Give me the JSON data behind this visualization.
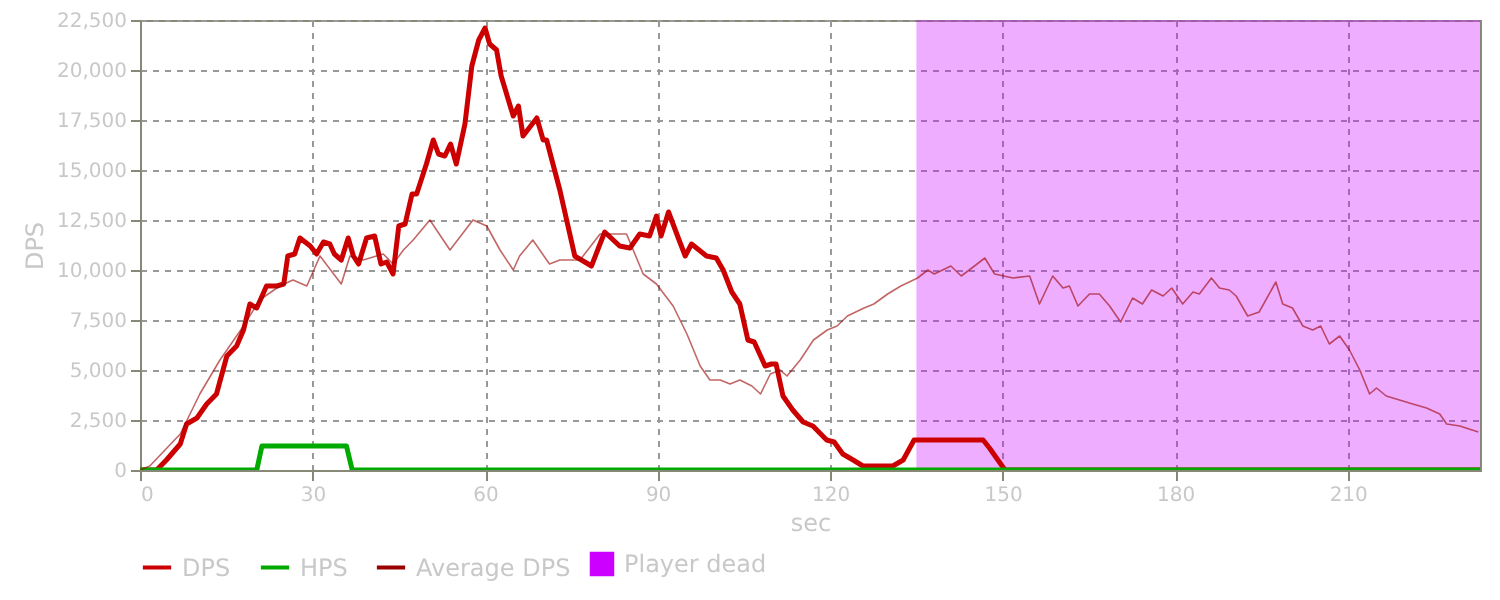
{
  "chart_data": {
    "type": "line",
    "xlabel": "sec",
    "ylabel": "DPS",
    "xlim": [
      0,
      233
    ],
    "ylim": [
      0,
      22500
    ],
    "xticks": [
      0,
      30,
      60,
      90,
      120,
      150,
      180,
      210
    ],
    "yticks": [
      0,
      {
        "value": 2500,
        "label": "2,500"
      },
      {
        "value": 5000,
        "label": "5,000"
      },
      {
        "value": 7500,
        "label": "7,500"
      },
      {
        "value": 10000,
        "label": "10,000"
      },
      {
        "value": 12500,
        "label": "12,500"
      },
      {
        "value": 15000,
        "label": "15,000"
      },
      {
        "value": 17500,
        "label": "17,500"
      },
      {
        "value": 20000,
        "label": "20,000"
      },
      {
        "value": 22500,
        "label": "22,500"
      }
    ],
    "grid": true,
    "legend": "bottom",
    "line_style": "solid",
    "marker": "none",
    "series": [
      {
        "name": "DPS",
        "color": "#cc0000",
        "x": [
          0,
          2.9,
          4.6,
          7.0,
          8.1,
          9.9,
          11.6,
          13.3,
          15.1,
          16.8,
          18,
          19.1,
          20.3,
          22,
          23.8,
          25,
          25.7,
          26.9,
          27.8,
          29.6,
          30.7,
          31.9,
          33,
          33.8,
          35,
          36.2,
          37.1,
          38,
          39.4,
          40.8,
          41.9,
          42.9,
          44,
          45,
          46.1,
          47.3,
          48.1,
          49.8,
          51,
          51.9,
          53,
          54,
          55,
          56.5,
          57.7,
          58.9,
          60,
          60.8,
          62,
          62.8,
          64.9,
          65.8,
          66.6,
          69,
          70.1,
          70.7,
          73,
          75.6,
          78.5,
          80.8,
          83.4,
          85.2,
          86.9,
          88.6,
          89.8,
          90.6,
          91.9,
          93.6,
          94.8,
          95.9,
          98.5,
          100.2,
          101.4,
          102.9,
          104.3,
          105.7,
          106.8,
          108.7,
          109.8,
          110.6,
          111.8,
          113.5,
          115.3,
          117,
          119.4,
          120.7,
          122.2,
          124,
          125.7,
          130.9,
          132.7,
          134.6,
          146.6,
          147.7,
          150.4,
          233
        ],
        "values": [
          0,
          0,
          500,
          1300,
          2300,
          2600,
          3300,
          3800,
          5700,
          6200,
          7000,
          8300,
          8100,
          9200,
          9200,
          9300,
          10700,
          10800,
          11600,
          11200,
          10800,
          11400,
          11300,
          10800,
          10500,
          11600,
          10700,
          10300,
          11600,
          11700,
          10300,
          10400,
          9800,
          12200,
          12300,
          13800,
          13800,
          15300,
          16500,
          15800,
          15700,
          16300,
          15300,
          17300,
          20200,
          21500,
          22100,
          21300,
          21000,
          19700,
          17700,
          18200,
          16700,
          17600,
          16500,
          16500,
          14000,
          10700,
          10200,
          11900,
          11200,
          11100,
          11800,
          11700,
          12700,
          11700,
          12900,
          11600,
          10700,
          11300,
          10700,
          10600,
          10000,
          8900,
          8300,
          6500,
          6400,
          5200,
          5300,
          5300,
          3700,
          3000,
          2400,
          2200,
          1500,
          1400,
          800,
          500,
          200,
          200,
          500,
          1500,
          1500,
          1100,
          0,
          0
        ]
      },
      {
        "name": "HPS",
        "color": "#00aa00",
        "x": [
          0,
          20.3,
          21.2,
          35.9,
          36.9,
          233
        ],
        "values": [
          0,
          0,
          1200,
          1200,
          0,
          0
        ]
      },
      {
        "name": "Average DPS",
        "color": "#990000",
        "x": [
          0,
          1.7,
          7,
          10.4,
          13.9,
          18,
          20.8,
          24.3,
          26.6,
          29,
          31.3,
          35,
          36.5,
          38.8,
          42.3,
          44,
          45.8,
          47.5,
          50.4,
          53.9,
          57.9,
          60.3,
          62.6,
          64.9,
          66,
          68.3,
          71.2,
          73,
          76.5,
          80,
          84.6,
          87.5,
          89.8,
          92.7,
          95.1,
          97.4,
          99.1,
          100.9,
          102.6,
          104.3,
          106.4,
          107.9,
          109.6,
          111.3,
          112.5,
          114.8,
          117.1,
          119.5,
          121.2,
          123,
          125.9,
          127.6,
          130,
          132.3,
          135.2,
          137,
          138.1,
          141,
          142.8,
          145.1,
          146.9,
          148.6,
          151.8,
          154.7,
          156.4,
          158.7,
          160.5,
          161.6,
          163.1,
          165.1,
          166.8,
          168.6,
          170.5,
          172.6,
          174.3,
          175.9,
          177.9,
          179.4,
          181.3,
          183.1,
          184.2,
          186.3,
          187.7,
          189.4,
          190.6,
          192.6,
          194.6,
          197.5,
          198.7,
          200.4,
          202.2,
          203.9,
          205.3,
          206.8,
          208.6,
          210.3,
          212.1,
          213.8,
          215,
          216.7,
          219,
          221.3,
          223.7,
          226,
          227.2,
          229.5,
          232.7
        ],
        "values": [
          0,
          200,
          1800,
          3800,
          5500,
          7200,
          8500,
          9200,
          9500,
          9200,
          10700,
          9300,
          10700,
          10500,
          10800,
          10300,
          11000,
          11500,
          12500,
          11000,
          12500,
          12200,
          11000,
          10000,
          10700,
          11500,
          10300,
          10500,
          10500,
          11800,
          11800,
          9800,
          9300,
          8200,
          6800,
          5200,
          4500,
          4500,
          4300,
          4500,
          4200,
          3800,
          4800,
          5000,
          4700,
          5500,
          6500,
          7000,
          7200,
          7700,
          8100,
          8300,
          8800,
          9200,
          9600,
          10000,
          9800,
          10200,
          9700,
          10200,
          10600,
          9800,
          9600,
          9700,
          8300,
          9700,
          9100,
          9200,
          8200,
          8800,
          8800,
          8200,
          7400,
          8600,
          8300,
          9000,
          8700,
          9100,
          8300,
          8900,
          8800,
          9600,
          9100,
          9000,
          8700,
          7700,
          7900,
          9400,
          8300,
          8100,
          7200,
          7000,
          7200,
          6300,
          6700,
          6000,
          5000,
          3800,
          4100,
          3700,
          3500,
          3300,
          3100,
          2800,
          2300,
          2200,
          1900
        ]
      }
    ],
    "bands": [
      {
        "axis": "x",
        "from": 135,
        "to": 233,
        "label": "Player dead",
        "color": "#cc00ff"
      }
    ]
  }
}
